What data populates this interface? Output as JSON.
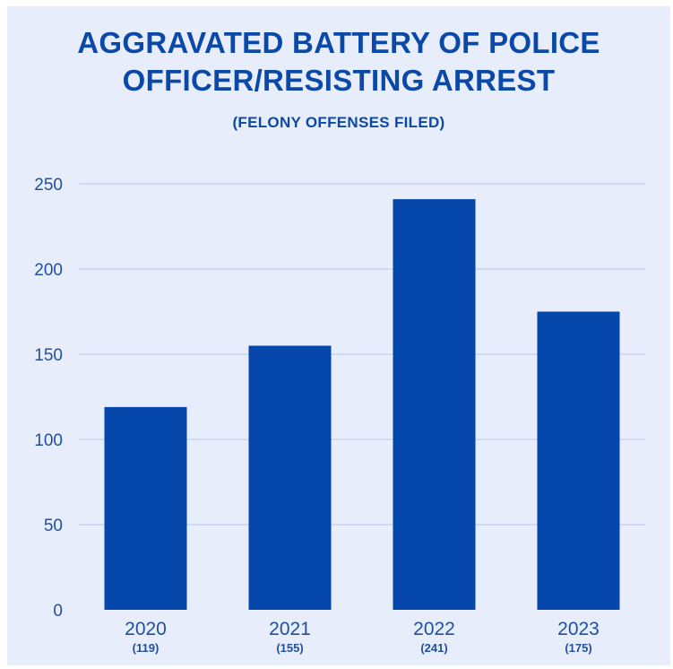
{
  "title_line1": "AGGRAVATED BATTERY OF POLICE",
  "title_line2": "OFFICER/RESISTING ARREST",
  "subtitle": "(FELONY OFFENSES FILED)",
  "colors": {
    "bar": "#0547ab",
    "background": "#e8edfb",
    "text": "#0b49a8",
    "grid": "#b9c7e4"
  },
  "chart_data": {
    "type": "bar",
    "title": "AGGRAVATED BATTERY OF POLICE OFFICER/RESISTING ARREST",
    "subtitle": "(FELONY OFFENSES FILED)",
    "categories": [
      "2020",
      "2021",
      "2022",
      "2023"
    ],
    "category_sublabels": [
      "(119)",
      "(155)",
      "(241)",
      "(175)"
    ],
    "values": [
      119,
      155,
      241,
      175
    ],
    "xlabel": "",
    "ylabel": "",
    "ylim": [
      0,
      250
    ],
    "yticks": [
      0,
      50,
      100,
      150,
      200,
      250
    ],
    "grid": true,
    "legend": "none"
  }
}
